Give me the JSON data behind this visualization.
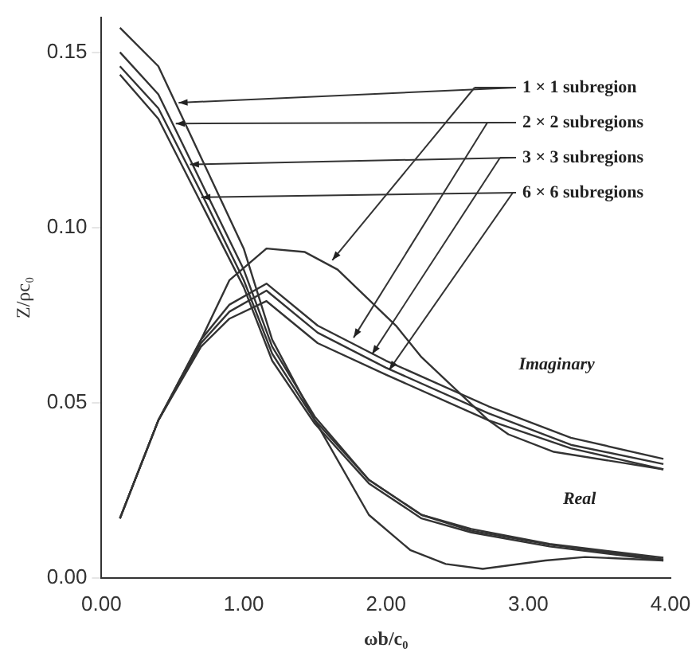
{
  "chart_data": {
    "type": "line",
    "xlabel": "ωb/c₀",
    "ylabel": "Z/ρc₀",
    "xlim": [
      0,
      4
    ],
    "ylim": [
      0,
      0.16
    ],
    "xticks": [
      {
        "value": 0,
        "label": "0.00"
      },
      {
        "value": 1,
        "label": "1.00"
      },
      {
        "value": 2,
        "label": "2.00"
      },
      {
        "value": 3,
        "label": "3.00"
      },
      {
        "value": 4,
        "label": "4.00"
      }
    ],
    "yticks": [
      {
        "value": 0,
        "label": "0.00"
      },
      {
        "value": 0.05,
        "label": "0.05"
      },
      {
        "value": 0.1,
        "label": "0.10"
      },
      {
        "value": 0.15,
        "label": "0.15"
      }
    ],
    "grid": false,
    "marker": "none",
    "line_style": "solid",
    "legend": "top right",
    "series": [
      {
        "name": "1 × 1 subregion",
        "color": "#333333",
        "x": [
          0.13,
          0.4,
          0.7,
          1.0,
          1.2,
          1.5,
          1.88,
          2.17,
          2.42,
          2.68,
          3.12,
          3.4,
          3.95
        ],
        "values": [
          0.157,
          0.146,
          0.12,
          0.094,
          0.068,
          0.045,
          0.018,
          0.008,
          0.004,
          0.0026,
          0.005,
          0.006,
          0.005
        ]
      },
      {
        "name": "2 × 2 subregions",
        "color": "#333333",
        "x": [
          0.13,
          0.4,
          0.7,
          1.0,
          1.2,
          1.5,
          1.88,
          2.25,
          2.6,
          3.15,
          3.95
        ],
        "values": [
          0.15,
          0.138,
          0.113,
          0.088,
          0.066,
          0.046,
          0.028,
          0.018,
          0.014,
          0.0097,
          0.0058
        ]
      },
      {
        "name": "3 × 3 subregions",
        "color": "#333333",
        "x": [
          0.13,
          0.4,
          0.7,
          1.0,
          1.2,
          1.5,
          1.88,
          2.25,
          2.6,
          3.15,
          3.95
        ],
        "values": [
          0.146,
          0.134,
          0.11,
          0.085,
          0.064,
          0.045,
          0.028,
          0.018,
          0.0135,
          0.0095,
          0.0053
        ]
      },
      {
        "name": "6 × 6 subregions",
        "color": "#333333",
        "x": [
          0.13,
          0.4,
          0.7,
          1.0,
          1.2,
          1.5,
          1.88,
          2.25,
          2.6,
          3.15,
          3.95
        ],
        "values": [
          0.1436,
          0.131,
          0.107,
          0.083,
          0.062,
          0.044,
          0.027,
          0.017,
          0.013,
          0.009,
          0.005
        ]
      },
      {
        "color": "#333333",
        "x": [
          0.13,
          0.4,
          0.7,
          0.9,
          1.16,
          1.43,
          1.66,
          2.07,
          2.25,
          2.72,
          2.86,
          3.18,
          3.95
        ],
        "values": [
          0.017,
          0.045,
          0.068,
          0.085,
          0.094,
          0.093,
          0.088,
          0.072,
          0.063,
          0.045,
          0.041,
          0.036,
          0.031
        ]
      },
      {
        "color": "#333333",
        "x": [
          0.13,
          0.4,
          0.7,
          0.9,
          1.16,
          1.52,
          2.0,
          2.72,
          3.3,
          3.95
        ],
        "values": [
          0.017,
          0.045,
          0.068,
          0.078,
          0.084,
          0.072,
          0.062,
          0.049,
          0.04,
          0.034
        ]
      },
      {
        "color": "#333333",
        "x": [
          0.13,
          0.4,
          0.7,
          0.9,
          1.16,
          1.52,
          2.0,
          2.72,
          3.3,
          3.95
        ],
        "values": [
          0.017,
          0.045,
          0.067,
          0.076,
          0.082,
          0.07,
          0.06,
          0.047,
          0.038,
          0.0325
        ]
      },
      {
        "color": "#333333",
        "x": [
          0.13,
          0.4,
          0.7,
          0.9,
          1.16,
          1.52,
          2.0,
          2.72,
          3.3,
          3.95
        ],
        "values": [
          0.017,
          0.045,
          0.066,
          0.074,
          0.079,
          0.067,
          0.058,
          0.045,
          0.037,
          0.031
        ]
      }
    ],
    "annotations": [
      "Imaginary",
      "Real"
    ]
  }
}
